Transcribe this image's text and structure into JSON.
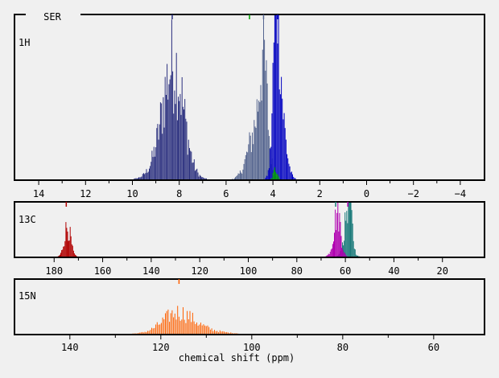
{
  "chart_data": {
    "type": "bar",
    "title": "SER",
    "xlabel": "chemical shift (ppm)",
    "grid": false,
    "panels": [
      {
        "name": "1H",
        "xlim": [
          15,
          -5
        ],
        "ticks": [
          14,
          12,
          10,
          8,
          6,
          4,
          2,
          0,
          -2,
          -4
        ],
        "series": [
          {
            "color": "#2a2f7e",
            "peaks": [
              [
                8.2,
                0.53,
                0.42
              ],
              [
                8.5,
                0.2,
                0.5
              ]
            ],
            "range": [
              10.6,
              6.4
            ]
          },
          {
            "color": "#55658f",
            "peaks": [
              [
                4.4,
                0.55,
                0.16
              ],
              [
                4.7,
                0.3,
                0.35
              ]
            ],
            "range": [
              6.0,
              3.4
            ]
          },
          {
            "color": "#0000c0",
            "peaks": [
              [
                3.85,
                0.9,
                0.12
              ],
              [
                3.7,
                0.45,
                0.22
              ]
            ],
            "range": [
              4.6,
              1.4
            ]
          },
          {
            "color": "#00a000",
            "peaks": [
              [
                3.9,
                0.06,
                0.08
              ]
            ],
            "range": [
              5.6,
              3.6
            ]
          }
        ],
        "markers": [
          {
            "x": 8.3,
            "color": "#2a2f7e"
          },
          {
            "x": 5.0,
            "color": "#00a000"
          },
          {
            "x": 4.4,
            "color": "#55658f"
          },
          {
            "x": 3.8,
            "color": "#0000c0"
          }
        ]
      },
      {
        "name": "13C",
        "xlim": [
          196,
          3
        ],
        "ticks": [
          180,
          160,
          140,
          120,
          100,
          80,
          60,
          40,
          20
        ],
        "series": [
          {
            "color": "#b00000",
            "peaks": [
              [
                174.5,
                0.55,
                1.3
              ]
            ],
            "range": [
              179,
              170
            ]
          },
          {
            "color": "#1a7a7a",
            "peaks": [
              [
                58.4,
                0.78,
                1.1
              ],
              [
                59.3,
                0.4,
                1.6
              ]
            ],
            "range": [
              64,
              53
            ]
          },
          {
            "color": "#b000b0",
            "peaks": [
              [
                63.0,
                0.58,
                1.2
              ],
              [
                64.0,
                0.3,
                1.5
              ]
            ],
            "range": [
              68,
              58
            ]
          }
        ],
        "markers": [
          {
            "x": 175,
            "color": "#b00000"
          },
          {
            "x": 64,
            "color": "#1a7a7a"
          },
          {
            "x": 59,
            "color": "#b000b0"
          }
        ]
      },
      {
        "name": "15N",
        "xlim": [
          152,
          49
        ],
        "ticks": [
          140,
          120,
          100,
          80,
          60
        ],
        "series": [
          {
            "color": "#ff6000",
            "peaks": [
              [
                116.5,
                0.32,
                3.2
              ],
              [
                113,
                0.1,
                4.5
              ]
            ],
            "range": [
              134,
              103
            ]
          }
        ],
        "markers": [
          {
            "x": 116,
            "color": "#ff6000"
          }
        ]
      }
    ]
  }
}
